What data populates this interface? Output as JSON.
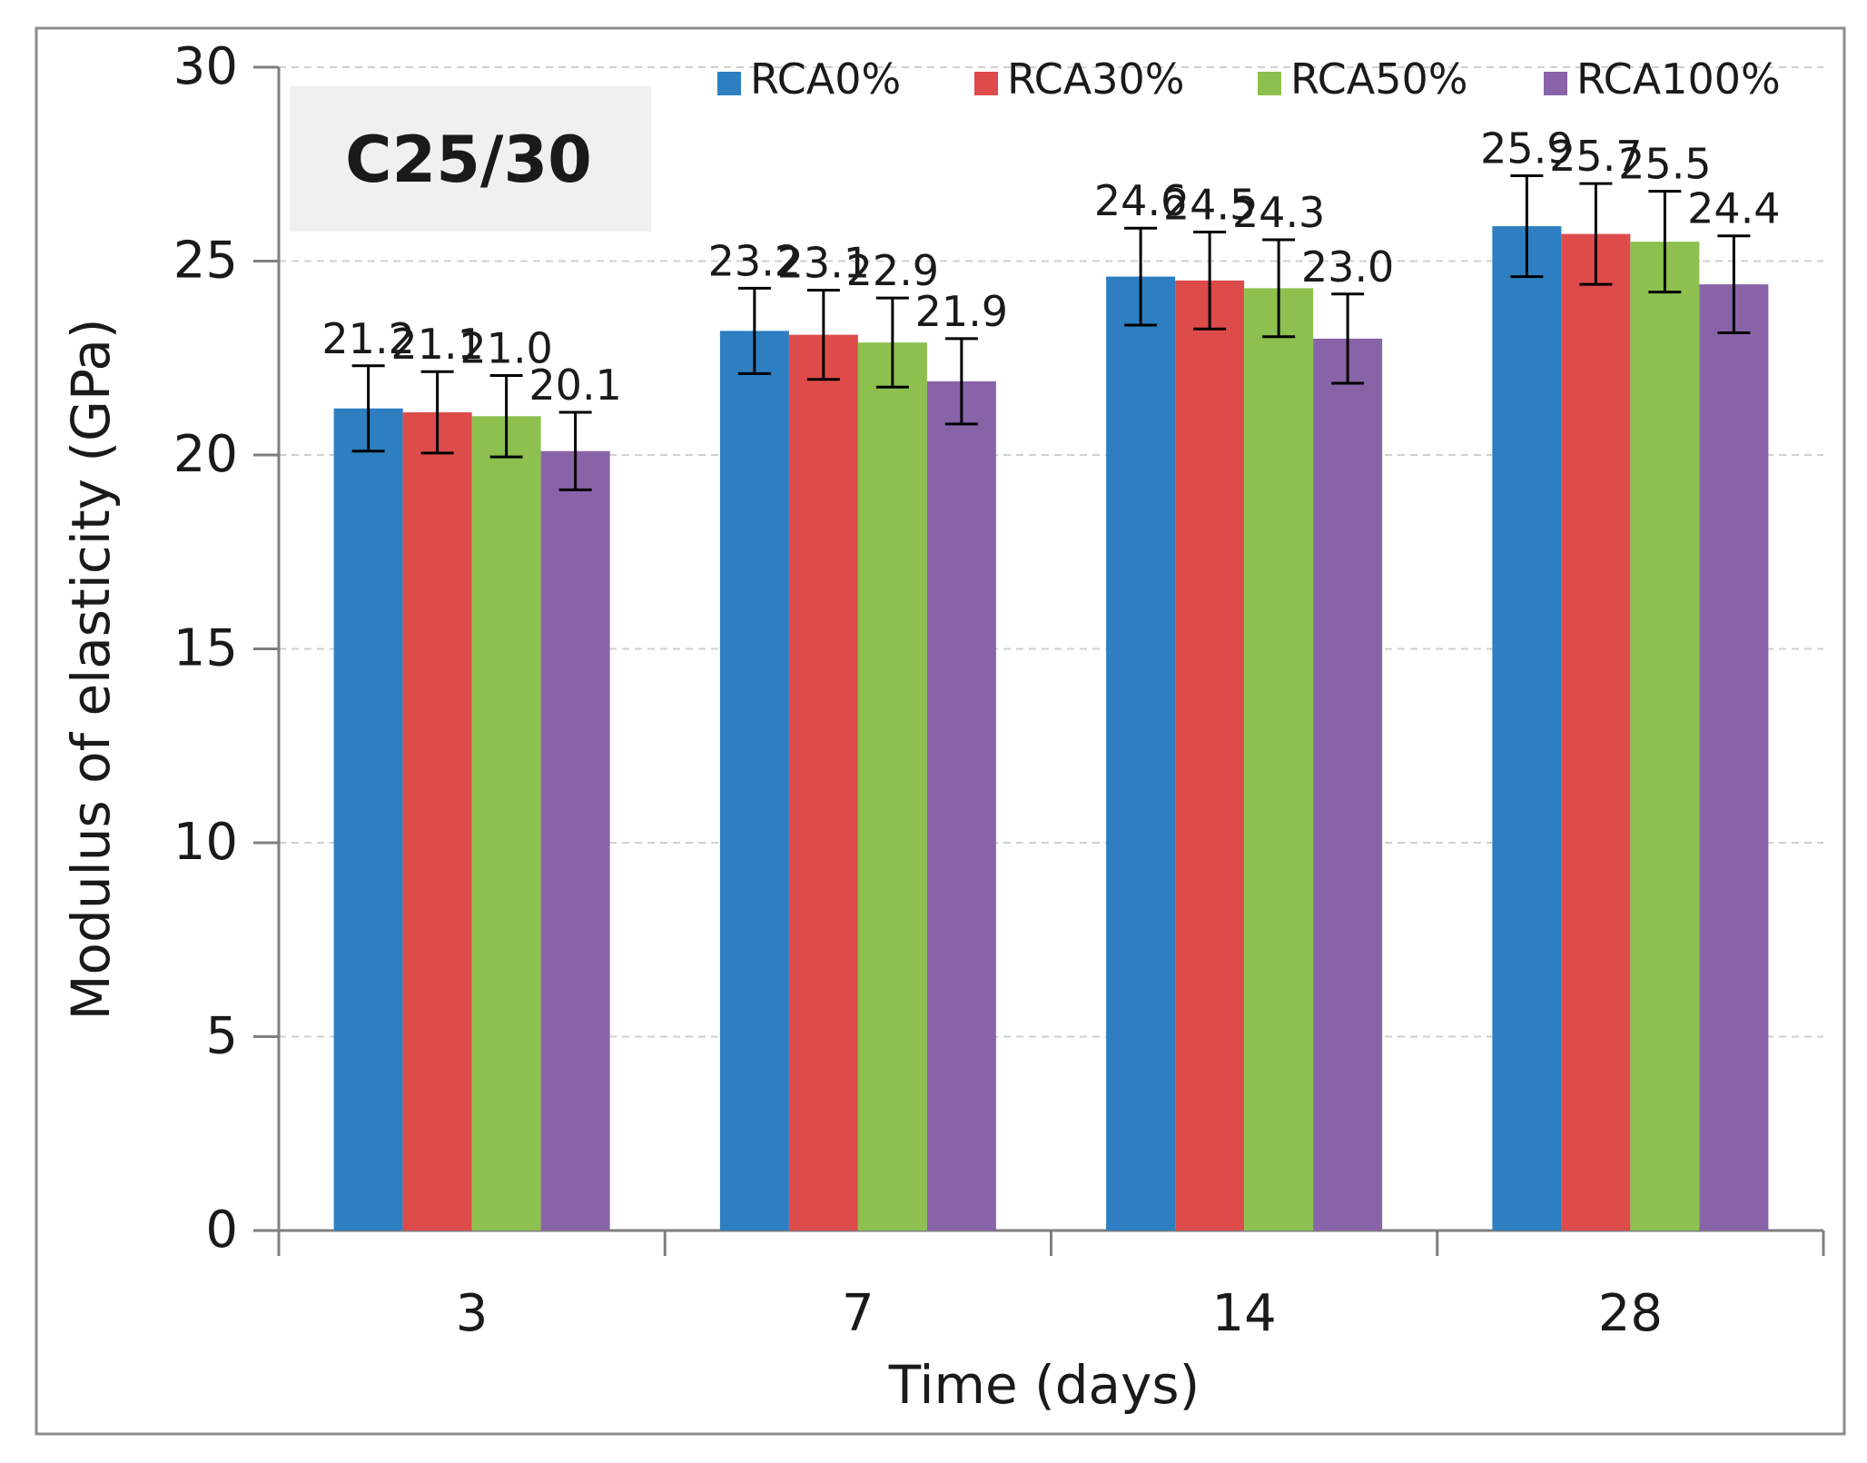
{
  "chart_data": {
    "type": "bar",
    "title": "",
    "annotation": "C25/30",
    "xlabel": "Time (days)",
    "ylabel": "Modulus of elasticity (GPa)",
    "categories": [
      "3",
      "7",
      "14",
      "28"
    ],
    "ylim": [
      0,
      30
    ],
    "yticks": [
      "0",
      "5",
      "10",
      "15",
      "20",
      "25",
      "30"
    ],
    "grid": true,
    "legend_position": "top-right",
    "series": [
      {
        "name": "RCA0%",
        "color": "#2D7FC1",
        "values": [
          21.2,
          23.2,
          24.6,
          25.9
        ],
        "labels": [
          "21.2",
          "23.2",
          "24.6",
          "25.9"
        ],
        "error": [
          1.1,
          1.1,
          1.25,
          1.3
        ]
      },
      {
        "name": "RCA30%",
        "color": "#DE4B4B",
        "values": [
          21.1,
          23.1,
          24.5,
          25.7
        ],
        "labels": [
          "21.1",
          "23.1",
          "24.5",
          "25.7"
        ],
        "error": [
          1.05,
          1.15,
          1.25,
          1.3
        ]
      },
      {
        "name": "RCA50%",
        "color": "#8DC04F",
        "values": [
          21.0,
          22.9,
          24.3,
          25.5
        ],
        "labels": [
          "21.0",
          "22.9",
          "24.3",
          "25.5"
        ],
        "error": [
          1.05,
          1.15,
          1.25,
          1.3
        ]
      },
      {
        "name": "RCA100%",
        "color": "#8963A8",
        "values": [
          20.1,
          21.9,
          23.0,
          24.4
        ],
        "labels": [
          "20.1",
          "21.9",
          "23.0",
          "24.4"
        ],
        "error": [
          1.0,
          1.1,
          1.15,
          1.25
        ]
      }
    ]
  }
}
